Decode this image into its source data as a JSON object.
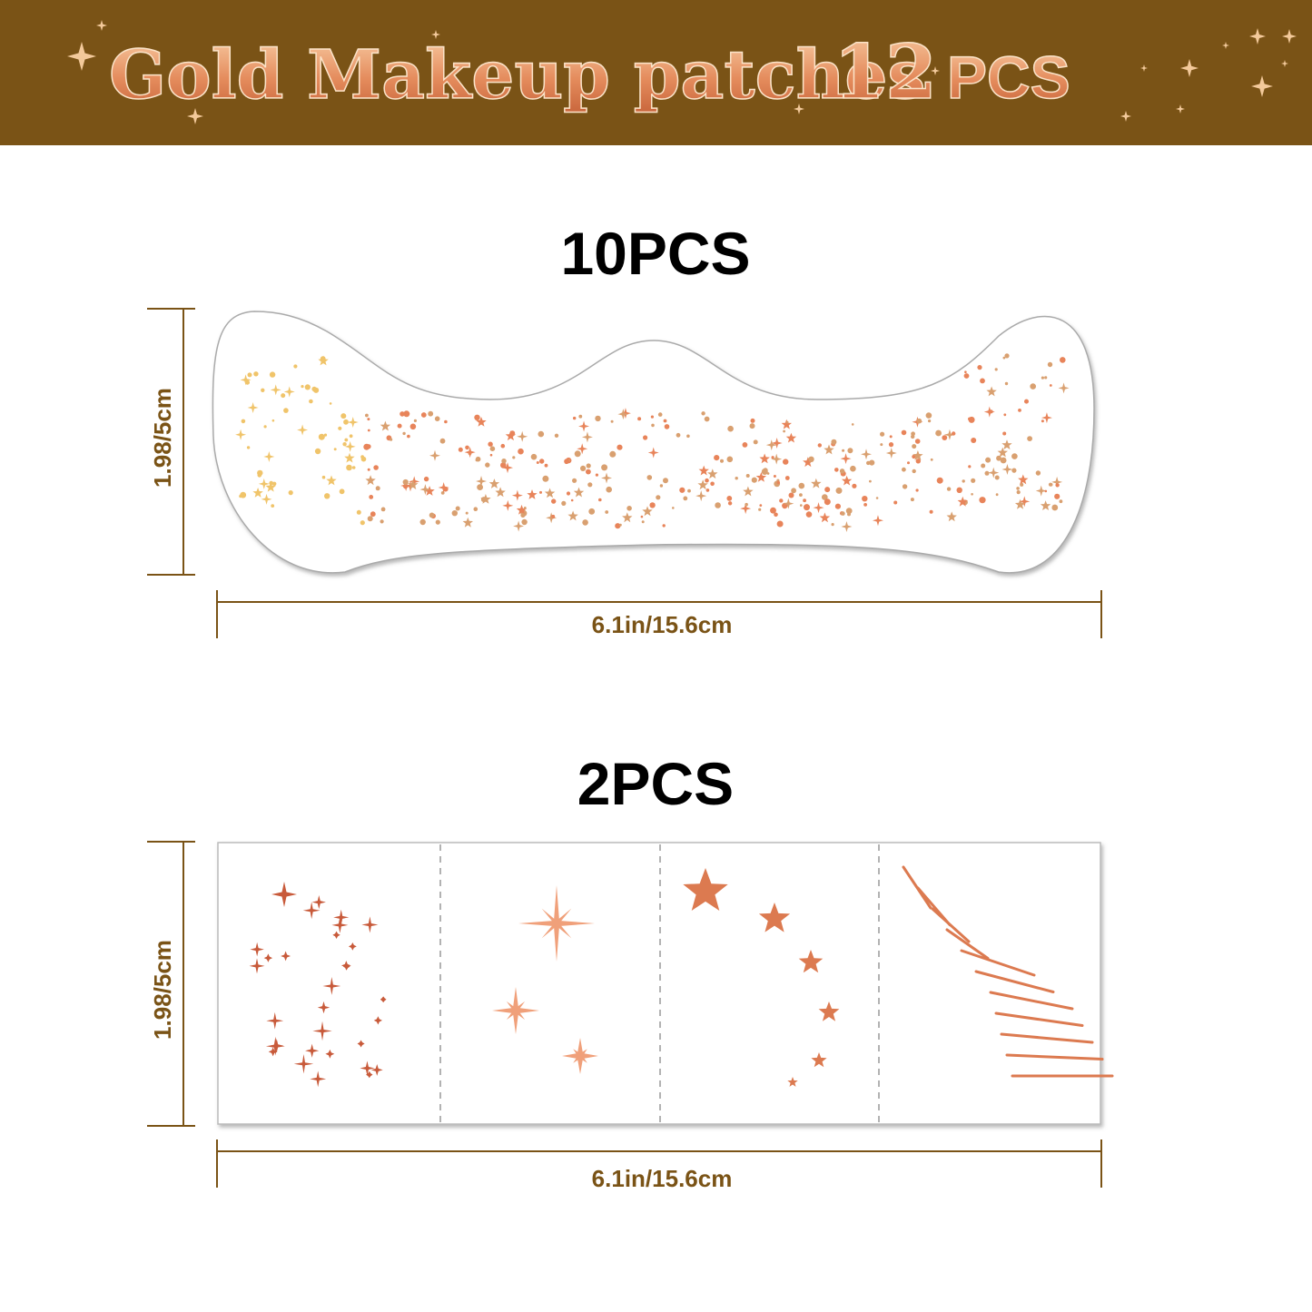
{
  "header": {
    "title": "Gold Makeup patches",
    "count": "12",
    "unit": "PCS"
  },
  "sections": [
    {
      "label": "10PCS",
      "height": "1.98/5cm",
      "width": "6.1in/15.6cm"
    },
    {
      "label": "2PCS",
      "height": "1.98/5cm",
      "width": "6.1in/15.6cm"
    }
  ]
}
